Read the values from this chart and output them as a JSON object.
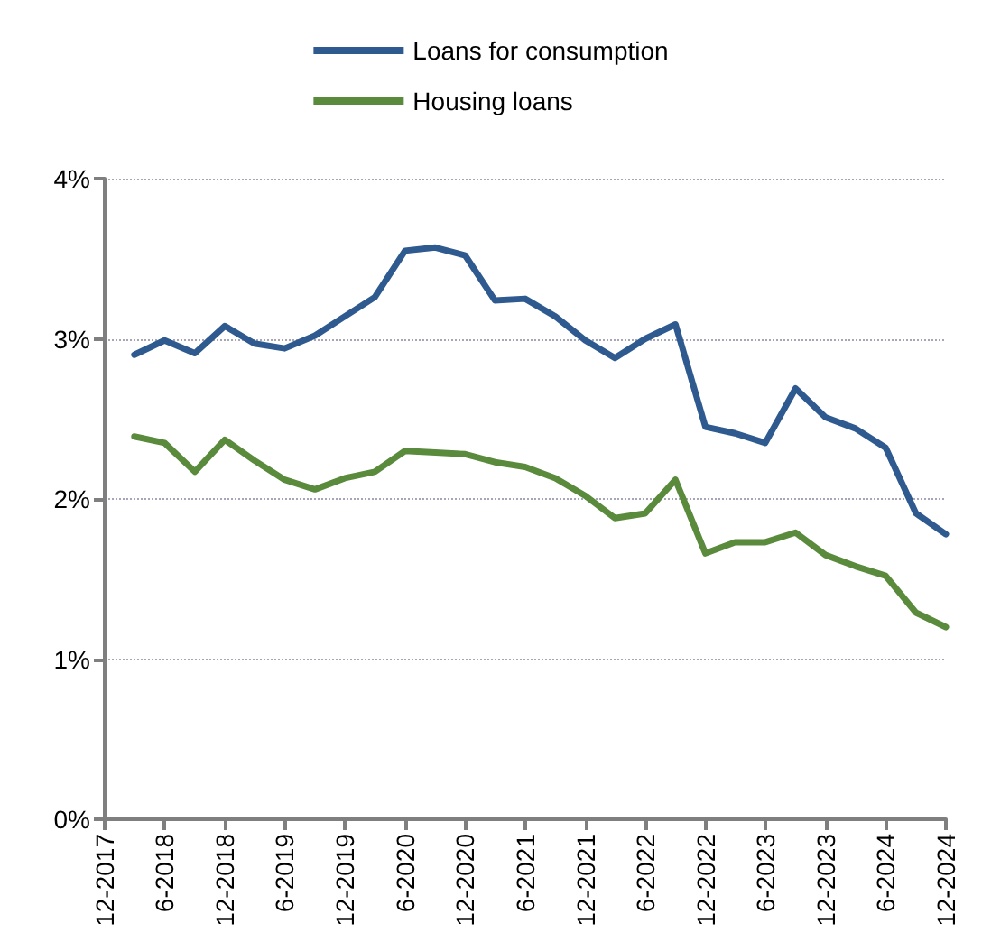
{
  "chart_data": {
    "type": "line",
    "x": [
      "2018-03",
      "2018-06",
      "2018-09",
      "2018-12",
      "2019-03",
      "2019-06",
      "2019-09",
      "2019-12",
      "2020-03",
      "2020-06",
      "2020-09",
      "2020-12",
      "2021-03",
      "2021-06",
      "2021-09",
      "2021-12",
      "2022-03",
      "2022-06",
      "2022-09",
      "2022-12",
      "2023-03",
      "2023-06",
      "2023-09",
      "2023-12",
      "2024-03",
      "2024-06",
      "2024-09",
      "2024-12"
    ],
    "series": [
      {
        "name": "Loans for consumption",
        "color": "#2e5a8f",
        "values": [
          2.9,
          2.99,
          2.91,
          3.08,
          2.97,
          2.94,
          3.02,
          3.14,
          3.26,
          3.55,
          3.57,
          3.52,
          3.24,
          3.25,
          3.14,
          2.99,
          2.88,
          3.0,
          3.09,
          2.45,
          2.41,
          2.35,
          2.69,
          2.51,
          2.44,
          2.32,
          1.91,
          1.78
        ]
      },
      {
        "name": "Housing loans",
        "color": "#5a8a3c",
        "values": [
          2.39,
          2.35,
          2.17,
          2.37,
          2.24,
          2.12,
          2.06,
          2.13,
          2.17,
          2.3,
          2.29,
          2.28,
          2.23,
          2.2,
          2.13,
          2.02,
          1.88,
          1.91,
          2.12,
          1.66,
          1.73,
          1.73,
          1.79,
          1.65,
          1.58,
          1.52,
          1.29,
          1.2
        ]
      }
    ],
    "xlim": [
      "2017-12",
      "2024-12"
    ],
    "xticks": [
      {
        "value": "2017-12",
        "label": "12-2017"
      },
      {
        "value": "2018-06",
        "label": "6-2018"
      },
      {
        "value": "2018-12",
        "label": "12-2018"
      },
      {
        "value": "2019-06",
        "label": "6-2019"
      },
      {
        "value": "2019-12",
        "label": "12-2019"
      },
      {
        "value": "2020-06",
        "label": "6-2020"
      },
      {
        "value": "2020-12",
        "label": "12-2020"
      },
      {
        "value": "2021-06",
        "label": "6-2021"
      },
      {
        "value": "2021-12",
        "label": "12-2021"
      },
      {
        "value": "2022-06",
        "label": "6-2022"
      },
      {
        "value": "2022-12",
        "label": "12-2022"
      },
      {
        "value": "2023-06",
        "label": "6-2023"
      },
      {
        "value": "2023-12",
        "label": "12-2023"
      },
      {
        "value": "2024-06",
        "label": "6-2024"
      },
      {
        "value": "2024-12",
        "label": "12-2024"
      }
    ],
    "ylim": [
      0,
      4
    ],
    "yticks": [
      {
        "value": 0,
        "label": "0%"
      },
      {
        "value": 1,
        "label": "1%"
      },
      {
        "value": 2,
        "label": "2%"
      },
      {
        "value": 3,
        "label": "3%"
      },
      {
        "value": 4,
        "label": "4%"
      }
    ],
    "grid": "y",
    "legend": "top",
    "marker": "none",
    "line_style": "solid"
  }
}
